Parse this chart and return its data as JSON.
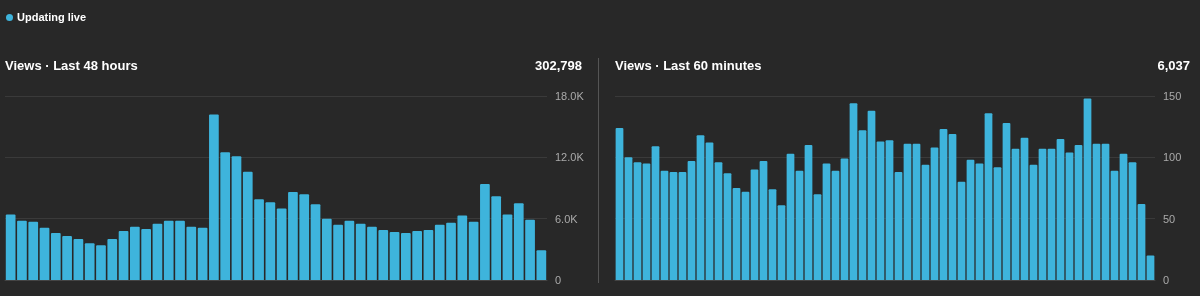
{
  "chart_data": [
    {
      "type": "bar",
      "title": "Views · Last 48 hours",
      "subtitle": "302,798",
      "annotations": [
        "Updating live"
      ],
      "categories": [
        null,
        null,
        null,
        null,
        null,
        null,
        null,
        null,
        null,
        null,
        null,
        null,
        null,
        null,
        null,
        null,
        null,
        null,
        null,
        null,
        null,
        null,
        null,
        null,
        null,
        null,
        null,
        null,
        null,
        null,
        null,
        null,
        null,
        null,
        null,
        null,
        null,
        null,
        null,
        null,
        null,
        null,
        null,
        null,
        null,
        null,
        null,
        null
      ],
      "values": [
        6400,
        5800,
        5700,
        5100,
        4600,
        4300,
        4000,
        3600,
        3400,
        4000,
        4800,
        5200,
        5000,
        5500,
        5800,
        5800,
        5200,
        5100,
        16200,
        12500,
        12100,
        10600,
        7900,
        7600,
        7000,
        8600,
        8400,
        7400,
        6000,
        5400,
        5800,
        5500,
        5200,
        4900,
        4700,
        4600,
        4800,
        4900,
        5400,
        5600,
        6300,
        5700,
        9400,
        8200,
        6400,
        7500,
        5900,
        2900
      ],
      "color": "#3eb4dc",
      "ylim": [
        0,
        18000
      ],
      "yticks": [
        {
          "value": 0,
          "label": "0"
        },
        {
          "value": 6000,
          "label": "6.0K"
        },
        {
          "value": 12000,
          "label": "12.0K"
        },
        {
          "value": 18000,
          "label": "18.0K"
        }
      ],
      "grid": "y",
      "tick_labels": "y"
    },
    {
      "type": "bar",
      "title": "Views · Last 60 minutes",
      "subtitle": "6,037",
      "categories": [
        null,
        null,
        null,
        null,
        null,
        null,
        null,
        null,
        null,
        null,
        null,
        null,
        null,
        null,
        null,
        null,
        null,
        null,
        null,
        null,
        null,
        null,
        null,
        null,
        null,
        null,
        null,
        null,
        null,
        null,
        null,
        null,
        null,
        null,
        null,
        null,
        null,
        null,
        null,
        null,
        null,
        null,
        null,
        null,
        null,
        null,
        null,
        null,
        null,
        null,
        null,
        null,
        null,
        null,
        null,
        null,
        null,
        null,
        null,
        null
      ],
      "values": [
        124,
        100,
        96,
        95,
        109,
        89,
        88,
        88,
        97,
        118,
        112,
        96,
        87,
        75,
        72,
        90,
        97,
        74,
        61,
        103,
        89,
        110,
        70,
        95,
        89,
        99,
        144,
        122,
        138,
        113,
        114,
        88,
        111,
        111,
        94,
        108,
        123,
        119,
        80,
        98,
        95,
        136,
        92,
        128,
        107,
        116,
        94,
        107,
        107,
        115,
        104,
        110,
        148,
        111,
        111,
        89,
        103,
        96,
        62,
        20
      ],
      "color": "#3eb4dc",
      "ylim": [
        0,
        150
      ],
      "yticks": [
        0,
        50,
        100,
        150
      ],
      "grid": "y",
      "tick_labels": "y"
    }
  ]
}
